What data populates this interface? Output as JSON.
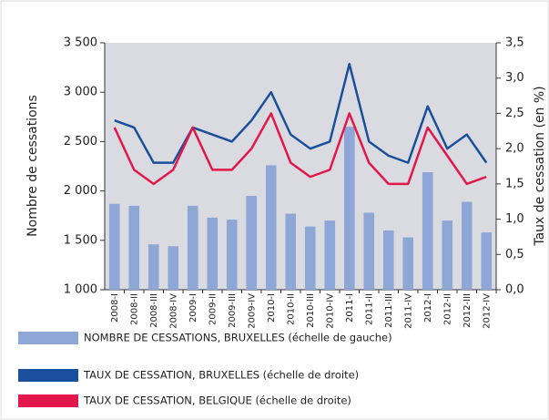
{
  "chart_data": {
    "type": "bar",
    "y_label": "Nombre de cessations",
    "y2_label": "Taux de cessation (en %)",
    "categories": [
      "2008-I",
      "2008-II",
      "2008-III",
      "2008-IV",
      "2009-I",
      "2009-II",
      "2009-III",
      "2009-IV",
      "2010-I",
      "2010-II",
      "2010-III",
      "2010-IV",
      "2011-I",
      "2011-II",
      "2011-III",
      "2011-IV",
      "2012-I",
      "2012-II",
      "2012-III",
      "2012-IV"
    ],
    "series": [
      {
        "name": "NOMBRE DE CESSATIONS, BRUXELLES (échelle de gauche)",
        "type": "bar",
        "axis": "y",
        "color": "#8fa7d6",
        "values": [
          1870,
          1850,
          1460,
          1440,
          1850,
          1730,
          1710,
          1950,
          2260,
          1770,
          1640,
          1700,
          2650,
          1780,
          1600,
          1530,
          2190,
          1700,
          1890,
          1580
        ]
      },
      {
        "name": "TAUX DE CESSATION, BRUXELLES (échelle de droite)",
        "type": "line",
        "axis": "y2",
        "color": "#1a4f9c",
        "values": [
          2.4,
          2.3,
          1.8,
          1.8,
          2.3,
          2.2,
          2.1,
          2.4,
          2.8,
          2.2,
          2.0,
          2.1,
          3.2,
          2.1,
          1.9,
          1.8,
          2.6,
          2.0,
          2.2,
          1.8
        ]
      },
      {
        "name": "TAUX DE CESSATION, BELGIQUE (échelle de droite)",
        "type": "line",
        "axis": "y2",
        "color": "#e3174b",
        "values": [
          2.3,
          1.7,
          1.5,
          1.7,
          2.3,
          1.7,
          1.7,
          2.0,
          2.5,
          1.8,
          1.6,
          1.7,
          2.5,
          1.8,
          1.5,
          1.5,
          2.3,
          1.9,
          1.5,
          1.6
        ]
      }
    ],
    "ylim": [
      1000,
      3500
    ],
    "yticks": [
      {
        "value": 1000,
        "label": "1 000"
      },
      {
        "value": 1500,
        "label": "1 500"
      },
      {
        "value": 2000,
        "label": "2 000"
      },
      {
        "value": 2500,
        "label": "2 500"
      },
      {
        "value": 3000,
        "label": "3 000"
      },
      {
        "value": 3500,
        "label": "3 500"
      }
    ],
    "y2lim": [
      0,
      3.5
    ],
    "y2ticks": [
      {
        "value": 0,
        "label": "0,0"
      },
      {
        "value": 0.5,
        "label": "0,5"
      },
      {
        "value": 1,
        "label": "1,0"
      },
      {
        "value": 1.5,
        "label": "1,5"
      },
      {
        "value": 2,
        "label": "2,0"
      },
      {
        "value": 2.5,
        "label": "2,5"
      },
      {
        "value": 3,
        "label": "3,0"
      },
      {
        "value": 3.5,
        "label": "3,5"
      }
    ]
  }
}
